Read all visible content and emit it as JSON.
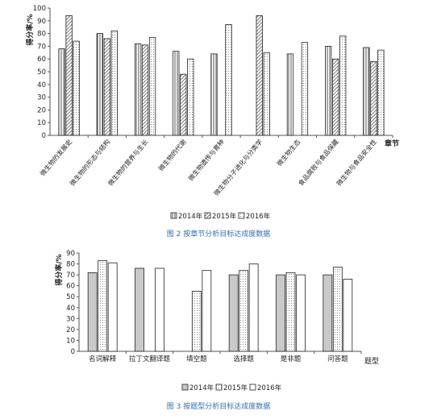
{
  "colors": {
    "bar_stroke": "#222222",
    "axis": "#555555",
    "grid": "#000000",
    "caption": "#2e6fb5",
    "text": "#222222"
  },
  "chart_data": [
    {
      "type": "bar",
      "title": "",
      "caption": "图 2  按章节分析目标达成度数据",
      "ylabel": "得分率/%",
      "xlabel": "章节",
      "ylim": [
        0,
        100
      ],
      "yticks": [
        0,
        10,
        20,
        30,
        40,
        50,
        60,
        70,
        80,
        90,
        100
      ],
      "grid": false,
      "legend_position": "bottom",
      "categories": [
        "微生物的发展史",
        "微生物的形态与结构",
        "微生物的营养与生长",
        "微生物的代谢",
        "微生物遗传与育种",
        "微生物分子进化与分类学",
        "微生物生态",
        "食品腐败与食品保藏",
        "微生物与食品安全性"
      ],
      "series": [
        {
          "name": "2014年",
          "pattern": "vstripe",
          "values": [
            68,
            80,
            72,
            66,
            64,
            null,
            64,
            70,
            69
          ]
        },
        {
          "name": "2015年",
          "pattern": "diag",
          "values": [
            94,
            76,
            71,
            48,
            null,
            94,
            null,
            60,
            58
          ]
        },
        {
          "name": "2016年",
          "pattern": "dots",
          "values": [
            74,
            82,
            77,
            60,
            87,
            65,
            73,
            78,
            67
          ]
        }
      ]
    },
    {
      "type": "bar",
      "title": "",
      "caption": "图 3  按题型分析目标达成度数据",
      "ylabel": "得分率/%",
      "xlabel": "题型",
      "ylim": [
        0,
        90
      ],
      "yticks": [
        0,
        10,
        20,
        30,
        40,
        50,
        60,
        70,
        80,
        90
      ],
      "grid": false,
      "legend_position": "bottom",
      "categories": [
        "名词解释",
        "拉丁文翻译题",
        "填空题",
        "选择题",
        "是非题",
        "问答题"
      ],
      "series": [
        {
          "name": "2014年",
          "pattern": "gray",
          "values": [
            72,
            76,
            null,
            70,
            70,
            70
          ]
        },
        {
          "name": "2015年",
          "pattern": "dots",
          "values": [
            83,
            null,
            55,
            74,
            72,
            77
          ]
        },
        {
          "name": "2016年",
          "pattern": "white",
          "values": [
            81,
            76,
            74,
            80,
            70,
            66
          ]
        }
      ]
    }
  ]
}
